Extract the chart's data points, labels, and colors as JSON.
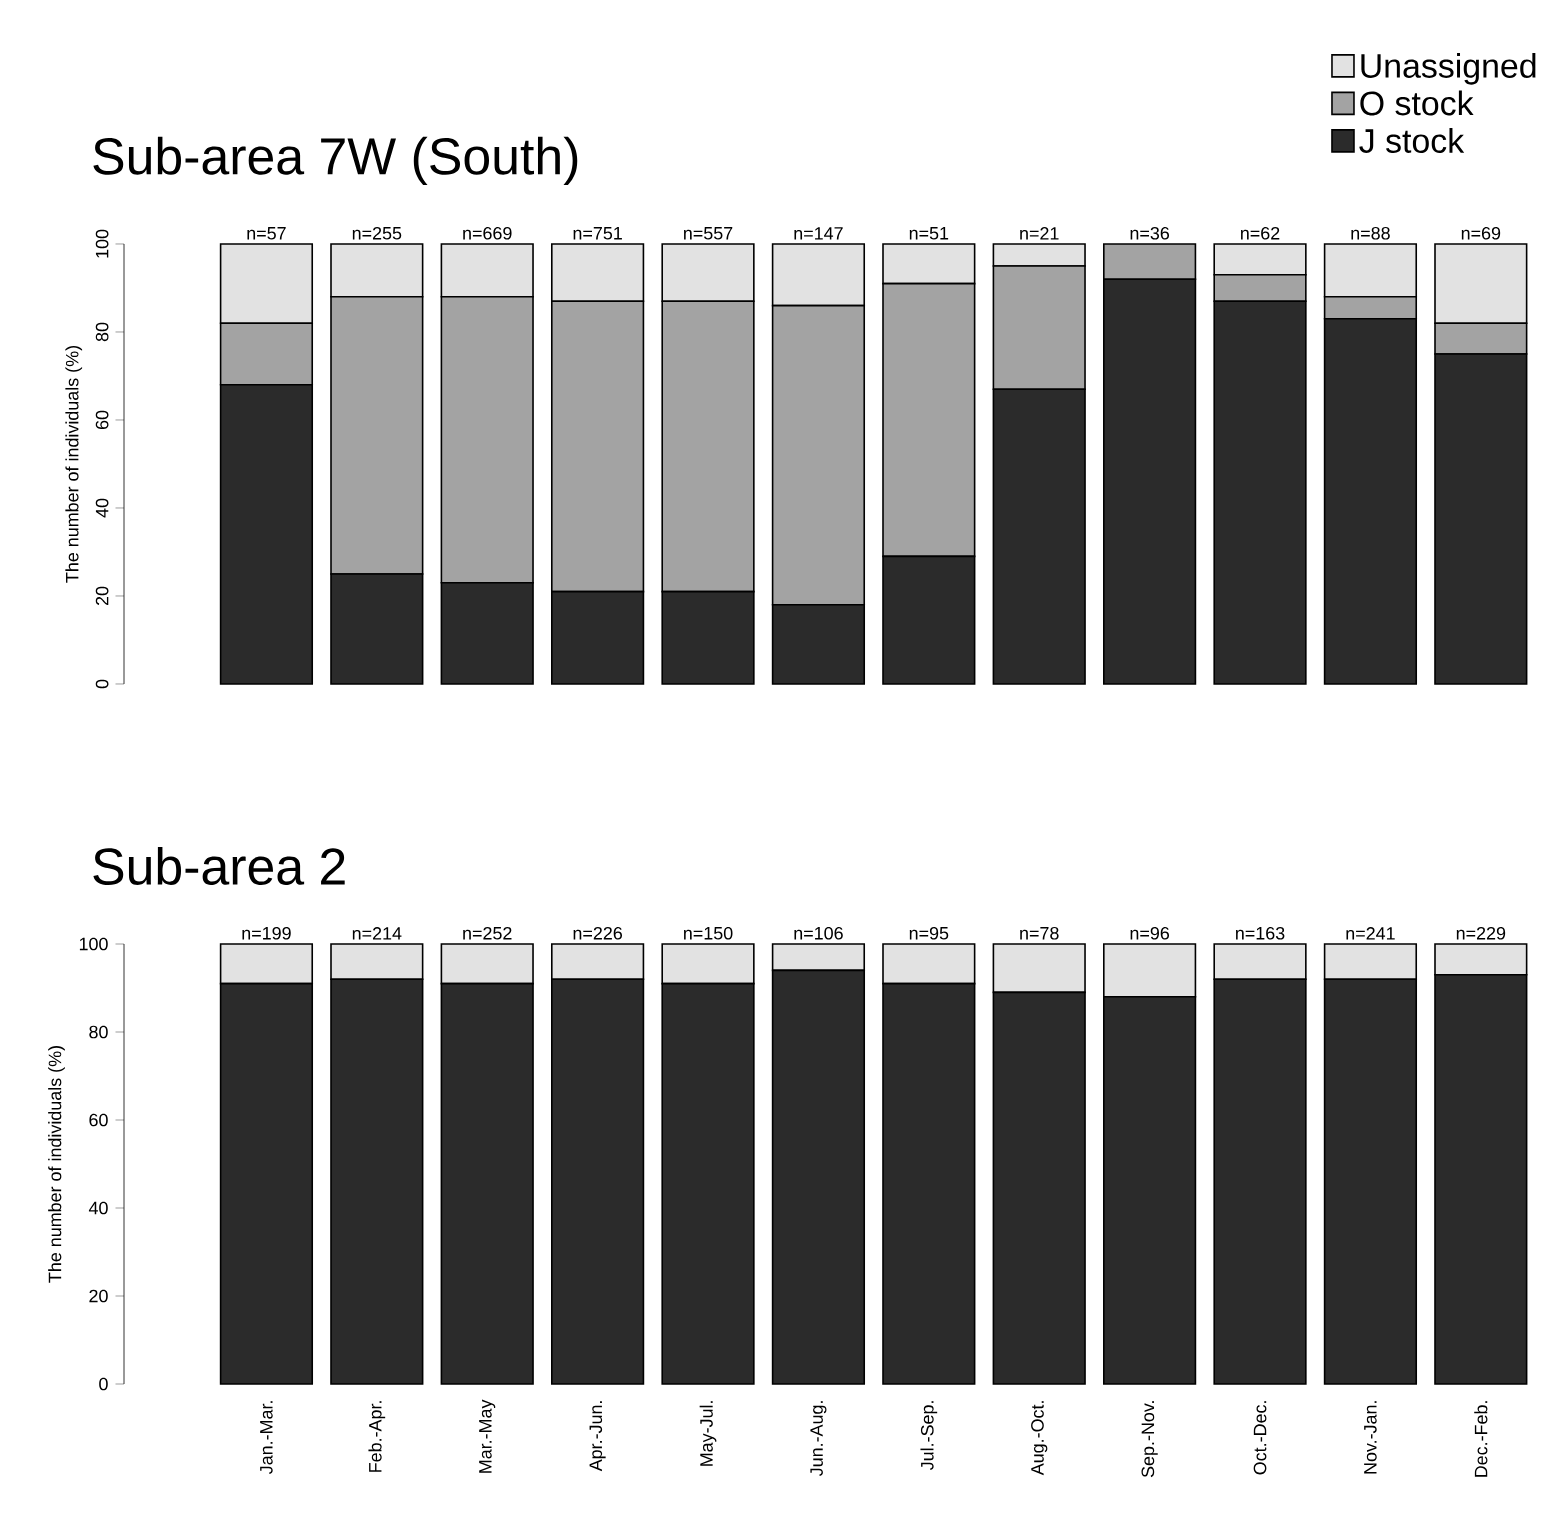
{
  "chart_data": [
    {
      "type": "bar",
      "stacked": true,
      "title": "Sub-area 7W (South)",
      "ylabel": "The number of individuals (%)",
      "categories": [
        null,
        null,
        null,
        null,
        null,
        null,
        null,
        null,
        null,
        null,
        null,
        null
      ],
      "series": [
        {
          "name": "J stock",
          "color": "#2b2b2b",
          "values": [
            68,
            25,
            23,
            21,
            21,
            18,
            29,
            67,
            92,
            87,
            83,
            75
          ]
        },
        {
          "name": "O stock",
          "color": "#a3a3a3",
          "values": [
            14,
            63,
            65,
            66,
            66,
            68,
            62,
            28,
            8,
            6,
            5,
            7
          ]
        },
        {
          "name": "Unassigned",
          "color": "#e2e2e2",
          "values": [
            18,
            12,
            12,
            13,
            13,
            14,
            9,
            5,
            0,
            7,
            12,
            18
          ]
        }
      ],
      "ylim": [
        0,
        100
      ],
      "yticks": [
        0,
        20,
        40,
        60,
        80,
        100
      ],
      "tick_labels": "y",
      "legend": "top right",
      "annotations": [
        {
          "text": "n=57",
          "y": 100
        },
        {
          "text": "n=255",
          "y": 100
        },
        {
          "text": "n=669",
          "y": 100
        },
        {
          "text": "n=751",
          "y": 100
        },
        {
          "text": "n=557",
          "y": 100
        },
        {
          "text": "n=147",
          "y": 100
        },
        {
          "text": "n=51",
          "y": 100
        },
        {
          "text": "n=21",
          "y": 100
        },
        {
          "text": "n=36",
          "y": 100
        },
        {
          "text": "n=62",
          "y": 100
        },
        {
          "text": "n=88",
          "y": 100
        },
        {
          "text": "n=69",
          "y": 100
        }
      ]
    },
    {
      "type": "bar",
      "stacked": true,
      "title": "Sub-area 2",
      "ylabel": "The number of individuals (%)",
      "categories": [
        "Jan.-Mar.",
        "Feb.-Apr.",
        "Mar.-May",
        "Apr.-Jun.",
        "May-Jul.",
        "Jun.-Aug.",
        "Jul.-Sep.",
        "Aug.-Oct.",
        "Sep.-Nov.",
        "Oct.-Dec.",
        "Nov.-Jan.",
        "Dec.-Feb."
      ],
      "series": [
        {
          "color": "#2b2b2b",
          "values": [
            91,
            92,
            91,
            92,
            91,
            94,
            91,
            89,
            88,
            92,
            92,
            93
          ]
        },
        {
          "color": "#e2e2e2",
          "values": [
            9,
            8,
            9,
            8,
            9,
            6,
            9,
            11,
            12,
            8,
            8,
            7
          ]
        }
      ],
      "ylim": [
        0,
        100
      ],
      "yticks": [
        0,
        20,
        40,
        60,
        80,
        100
      ],
      "annotations": [
        {
          "text": "n=199",
          "y": 100
        },
        {
          "text": "n=214",
          "y": 100
        },
        {
          "text": "n=252",
          "y": 100
        },
        {
          "text": "n=226",
          "y": 100
        },
        {
          "text": "n=150",
          "y": 100
        },
        {
          "text": "n=106",
          "y": 100
        },
        {
          "text": "n=95",
          "y": 100
        },
        {
          "text": "n=78",
          "y": 100
        },
        {
          "text": "n=96",
          "y": 100
        },
        {
          "text": "n=163",
          "y": 100
        },
        {
          "text": "n=241",
          "y": 100
        },
        {
          "text": "n=229",
          "y": 100
        }
      ]
    }
  ]
}
